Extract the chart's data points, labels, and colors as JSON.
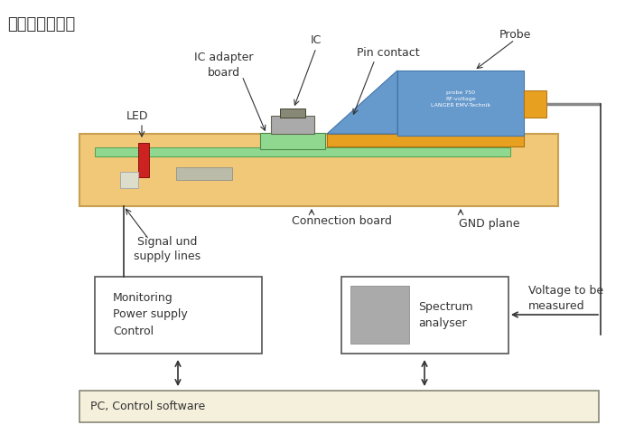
{
  "title": "测试框图如下：",
  "title_fontsize": 13,
  "bg_color": "#ffffff",
  "board_color": "#f0c878",
  "board_edge_color": "#c8a050",
  "green_strip_color": "#90d890",
  "green_strip_edge": "#50a050",
  "probe_body_color": "#6699cc",
  "probe_body_edge": "#4477aa",
  "probe_orange_color": "#e8a020",
  "probe_orange_edge": "#b07010",
  "led_color": "#cc2222",
  "led_edge": "#881111",
  "gray_mount_color": "#888877",
  "gray_comp_color": "#bbbbaa",
  "gray_comp_edge": "#999988",
  "box_color": "#ffffff",
  "box_edge_color": "#555555",
  "pc_box_color": "#f5f0dc",
  "pc_box_edge": "#888877",
  "arrow_color": "#333333",
  "line_color": "#333333",
  "text_color": "#333333",
  "labels": {
    "probe": "Probe",
    "ic": "IC",
    "pin_contact": "Pin contact",
    "ic_adapter": "IC adapter\nboard",
    "led": "LED",
    "connection_board": "Connection board",
    "gnd_plane": "GND plane",
    "signal_lines": "Signal und\nsupply lines",
    "monitoring": "Monitoring\nPower supply\nControl",
    "spectrum": "Spectrum\nanalyser",
    "voltage": "Voltage to be\nmeasured",
    "pc": "PC, Control software"
  },
  "probe_text": "probe 750\nRF-voltage\nLANGER EMV-Technik"
}
